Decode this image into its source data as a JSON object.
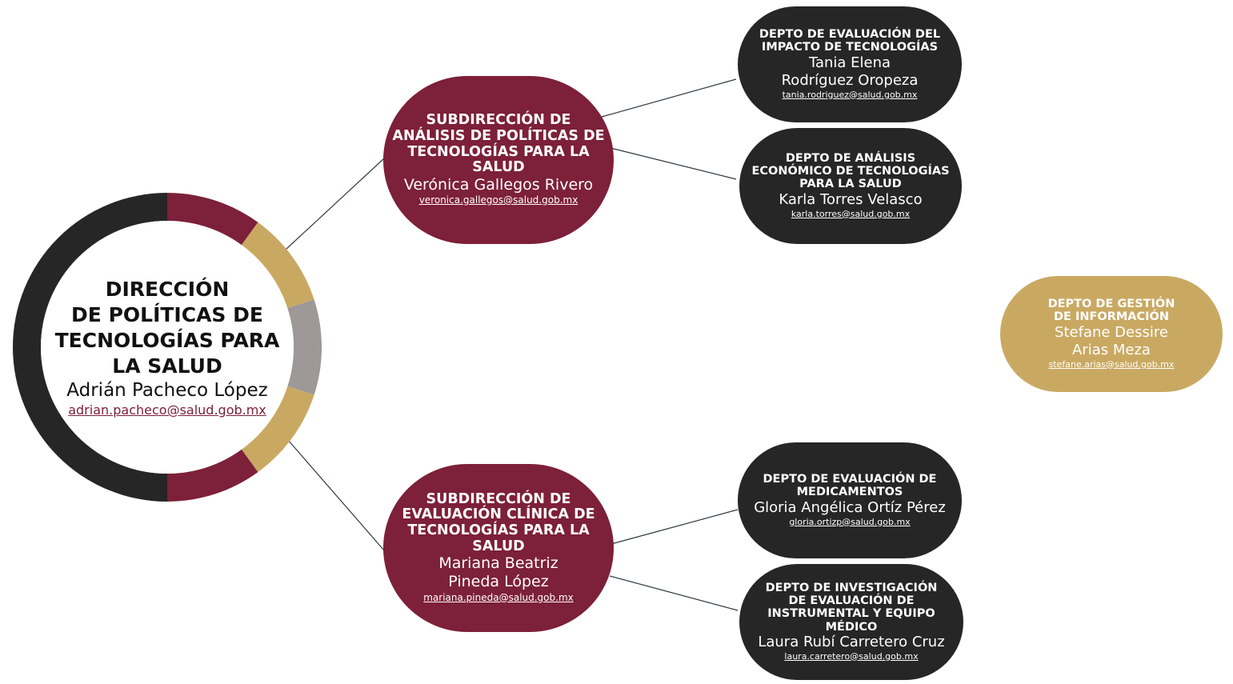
{
  "colors": {
    "dark": "#262626",
    "maroon": "#7d2039",
    "gold": "#c9a962",
    "gray": "#9e9899",
    "line": "#2f3a45"
  },
  "main": {
    "title_lines": [
      "DIRECCIÓN",
      "DE POLÍTICAS DE",
      "TECNOLOGÍAS PARA",
      "LA SALUD"
    ],
    "name": "Adrián Pacheco López",
    "email": "adrian.pacheco@salud.gob.mx"
  },
  "sub1": {
    "title_lines": [
      "SUBDIRECCIÓN DE",
      "ANÁLISIS DE POLÍTICAS DE",
      "TECNOLOGÍAS PARA LA",
      "SALUD"
    ],
    "name_lines": [
      "Verónica Gallegos Rivero"
    ],
    "email": "veronica.gallegos@salud.gob.mx"
  },
  "sub2": {
    "title_lines": [
      "SUBDIRECCIÓN DE",
      "EVALUACIÓN CLÍNICA DE",
      "TECNOLOGÍAS PARA LA",
      "SALUD"
    ],
    "name_lines": [
      "Mariana Beatriz",
      "Pineda López"
    ],
    "email": "mariana.pineda@salud.gob.mx"
  },
  "depto1": {
    "title_lines": [
      "DEPTO DE EVALUACIÓN DEL",
      "IMPACTO DE TECNOLOGÍAS"
    ],
    "name_lines": [
      "Tania Elena",
      "Rodríguez Oropeza"
    ],
    "email": "tania.rodriguez@salud.gob.mx"
  },
  "depto2": {
    "title_lines": [
      "DEPTO DE ANÁLISIS",
      "ECONÓMICO DE TECNOLOGÍAS",
      "PARA LA SALUD"
    ],
    "name_lines": [
      "Karla Torres Velasco"
    ],
    "email": "karla.torres@salud.gob.mx"
  },
  "depto3": {
    "title_lines": [
      "DEPTO DE EVALUACIÓN DE",
      "MEDICAMENTOS"
    ],
    "name_lines": [
      "Gloria Angélica Ortíz Pérez"
    ],
    "email": "gloria.ortizp@salud.gob.mx"
  },
  "depto4": {
    "title_lines": [
      "DEPTO DE INVESTIGACIÓN",
      "DE EVALUACIÓN DE",
      "INSTRUMENTAL Y EQUIPO",
      "MÉDICO"
    ],
    "name_lines": [
      "Laura Rubí Carretero Cruz"
    ],
    "email": "laura.carretero@salud.gob.mx"
  },
  "depto5": {
    "title_lines": [
      "DEPTO DE GESTIÓN",
      "DE INFORMACIÓN"
    ],
    "name_lines": [
      "Stefane Dessire",
      "Arias Meza"
    ],
    "email": "stefane.arias@salud.gob.mx"
  }
}
